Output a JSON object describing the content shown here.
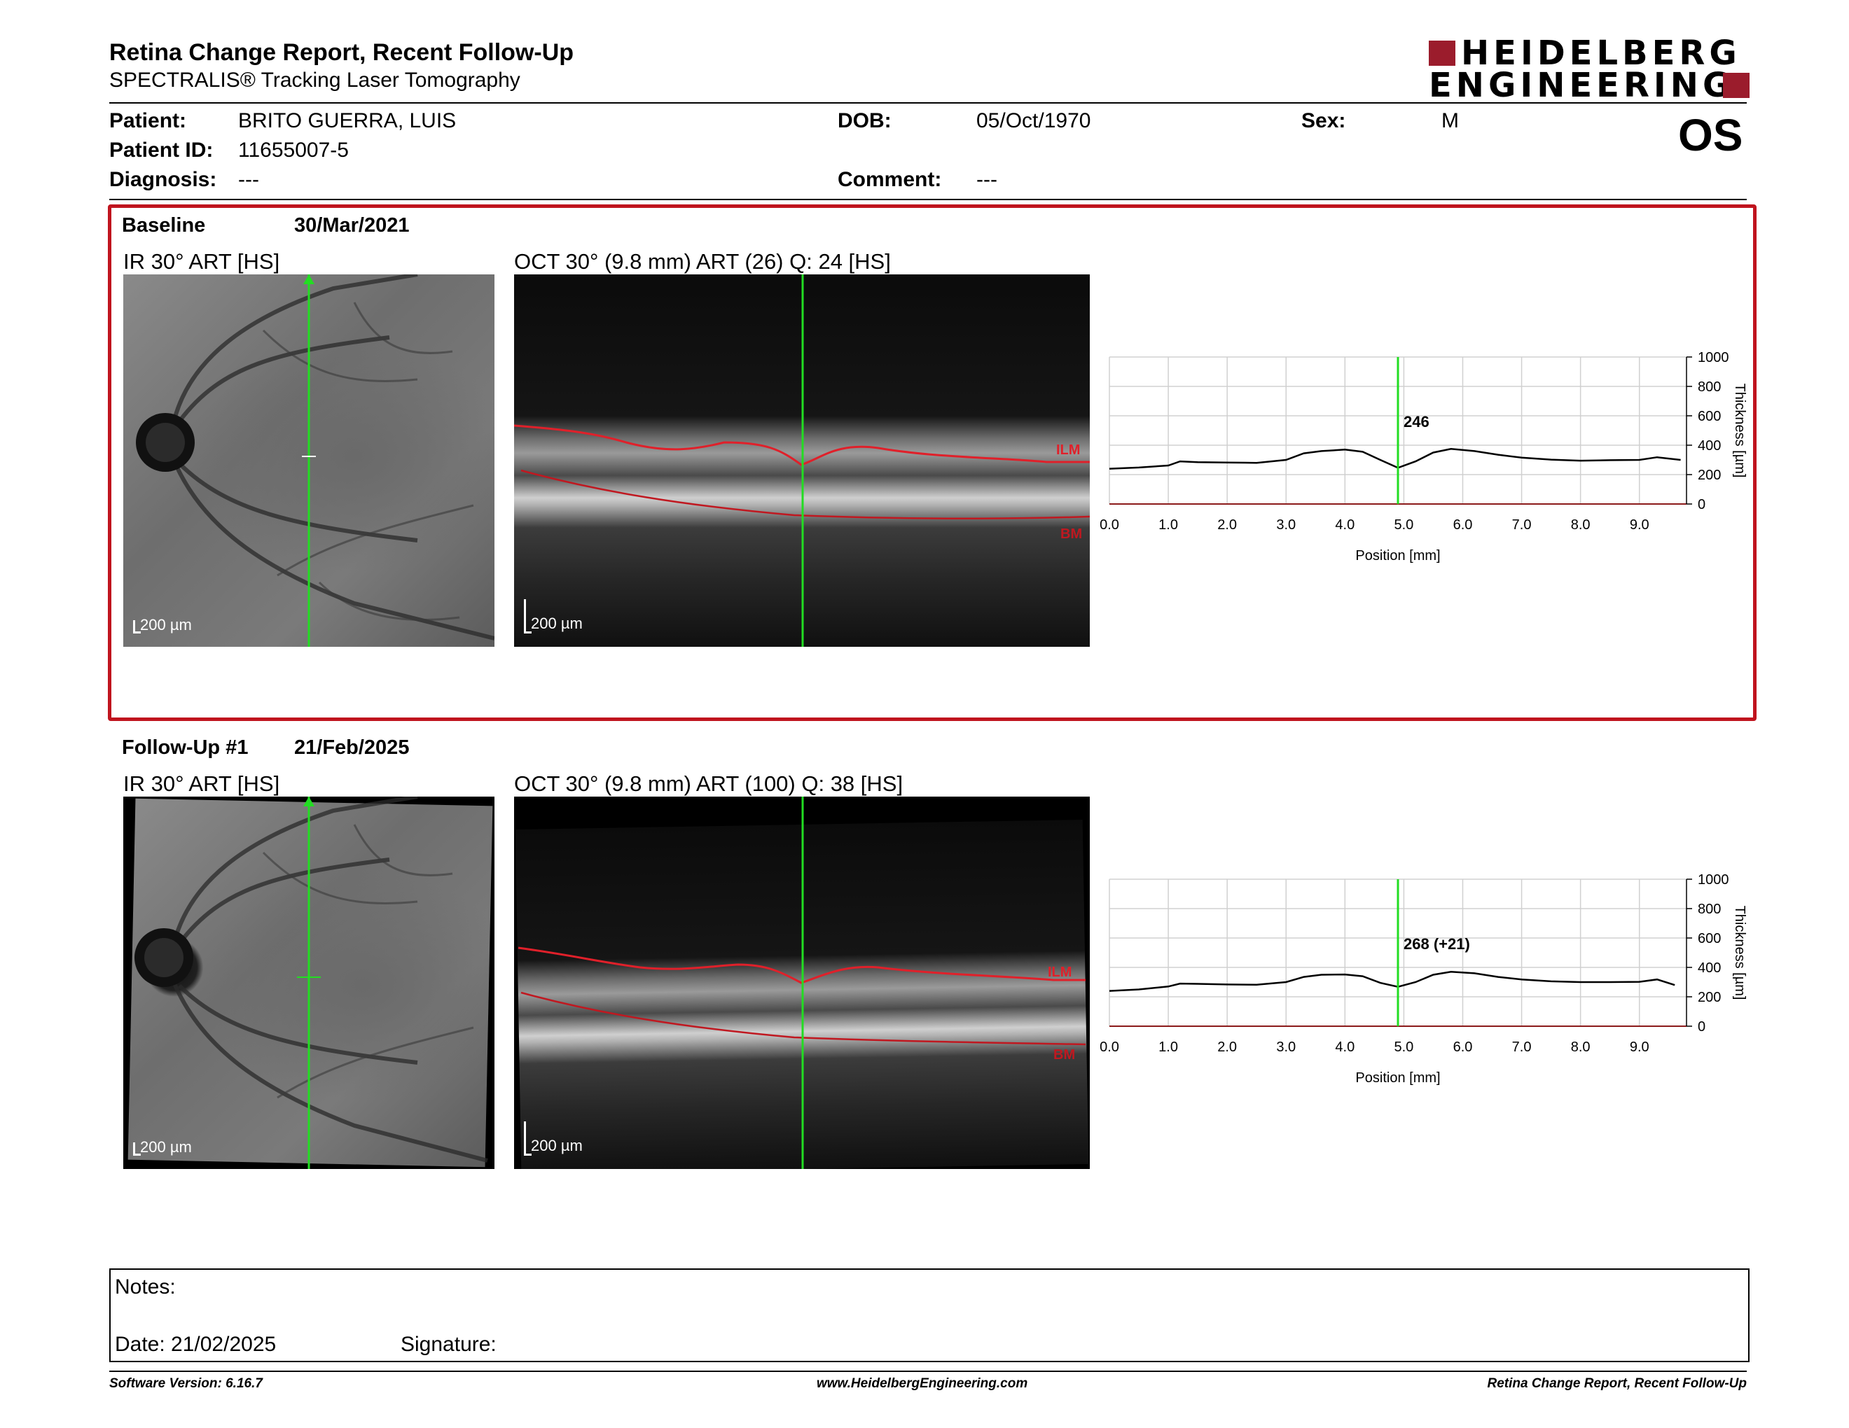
{
  "header": {
    "title": "Retina Change Report, Recent Follow-Up",
    "subtitle": "SPECTRALIS® Tracking Laser Tomography",
    "logo_line1": "HEIDELBERG",
    "logo_line2": "ENGINEERING",
    "brand_color": "#9b1c2c"
  },
  "patient": {
    "patient_label": "Patient:",
    "patient_value": "BRITO GUERRA, LUIS",
    "id_label": "Patient ID:",
    "id_value": "11655007-5",
    "diagnosis_label": "Diagnosis:",
    "diagnosis_value": "---",
    "dob_label": "DOB:",
    "dob_value": "05/Oct/1970",
    "comment_label": "Comment:",
    "comment_value": "---",
    "sex_label": "Sex:",
    "sex_value": "M",
    "eye": "OS"
  },
  "baseline": {
    "label": "Baseline",
    "date": "30/Mar/2021",
    "ir_label": "IR 30° ART [HS]",
    "oct_label": "OCT 30° (9.8 mm) ART (26) Q: 24 [HS]",
    "scale": "200 µm",
    "ilm": "ILM",
    "bm": "BM",
    "border_color": "#c0141e"
  },
  "followup": {
    "label": "Follow-Up #1",
    "date": "21/Feb/2025",
    "ir_label": "IR 30° ART [HS]",
    "oct_label": "OCT 30° (9.8 mm) ART (100) Q: 38 [HS]",
    "scale": "200 µm",
    "ilm": "ILM",
    "bm": "BM"
  },
  "chart_data": [
    {
      "type": "line",
      "xlabel": "Position [mm]",
      "ylabel": "Thickness [µm]",
      "xlim": [
        0,
        9.8
      ],
      "ylim": [
        0,
        1000
      ],
      "x_ticks": [
        "0.0",
        "1.0",
        "2.0",
        "3.0",
        "4.0",
        "5.0",
        "6.0",
        "7.0",
        "8.0",
        "9.0"
      ],
      "y_ticks": [
        "0",
        "200",
        "400",
        "600",
        "800",
        "1000"
      ],
      "marker_x": 4.9,
      "marker_label": "246",
      "grid": true,
      "series": [
        {
          "x": [
            0.0,
            0.5,
            1.0,
            1.2,
            1.5,
            2.0,
            2.5,
            3.0,
            3.3,
            3.6,
            4.0,
            4.3,
            4.6,
            4.9,
            5.2,
            5.5,
            5.8,
            6.2,
            6.6,
            7.0,
            7.5,
            8.0,
            8.5,
            9.0,
            9.3,
            9.7
          ],
          "y": [
            240,
            248,
            262,
            290,
            285,
            282,
            280,
            300,
            345,
            360,
            370,
            355,
            300,
            246,
            290,
            350,
            375,
            360,
            335,
            315,
            302,
            295,
            298,
            300,
            318,
            300
          ]
        }
      ]
    },
    {
      "type": "line",
      "xlabel": "Position [mm]",
      "ylabel": "Thickness [µm]",
      "xlim": [
        0,
        9.8
      ],
      "ylim": [
        0,
        1000
      ],
      "x_ticks": [
        "0.0",
        "1.0",
        "2.0",
        "3.0",
        "4.0",
        "5.0",
        "6.0",
        "7.0",
        "8.0",
        "9.0"
      ],
      "y_ticks": [
        "0",
        "200",
        "400",
        "600",
        "800",
        "1000"
      ],
      "marker_x": 4.9,
      "marker_label": "268 (+21)",
      "grid": true,
      "series": [
        {
          "x": [
            0.0,
            0.5,
            1.0,
            1.2,
            1.5,
            2.0,
            2.5,
            3.0,
            3.3,
            3.6,
            4.0,
            4.3,
            4.6,
            4.9,
            5.2,
            5.5,
            5.8,
            6.2,
            6.6,
            7.0,
            7.5,
            8.0,
            8.5,
            9.0,
            9.3,
            9.6
          ],
          "y": [
            240,
            250,
            270,
            290,
            288,
            284,
            282,
            300,
            335,
            350,
            352,
            340,
            295,
            268,
            300,
            350,
            370,
            360,
            335,
            318,
            305,
            300,
            300,
            302,
            318,
            280
          ]
        }
      ]
    }
  ],
  "notes": {
    "notes_label": "Notes:",
    "date_label": "Date: 21/02/2025",
    "signature_label": "Signature:"
  },
  "footer": {
    "software": "Software Version: 6.16.7",
    "url": "www.HeidelbergEngineering.com",
    "report": "Retina Change Report, Recent Follow-Up"
  }
}
